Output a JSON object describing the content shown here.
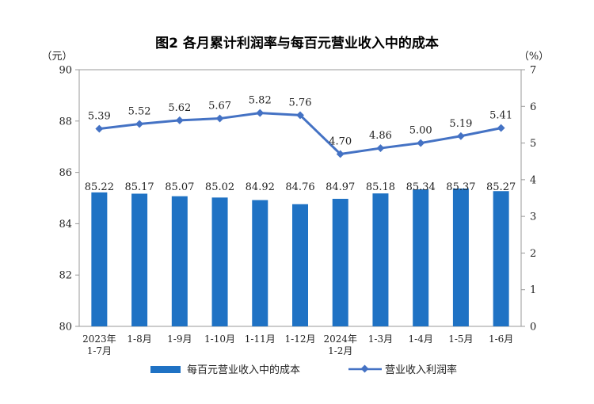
{
  "chart_data": {
    "type": "bar",
    "title": "图2  各月累计利润率与每百元营业收入中的成本",
    "y_left_unit": "（元）",
    "y_right_unit": "（%）",
    "y_left_ticks": [
      "80",
      "82",
      "84",
      "86",
      "88",
      "90"
    ],
    "y_right_ticks": [
      "0",
      "1",
      "2",
      "3",
      "4",
      "5",
      "6",
      "7"
    ],
    "ylim_left": [
      80,
      90
    ],
    "ylim_right": [
      0,
      7
    ],
    "categories": [
      [
        "2023年",
        "1-7月"
      ],
      [
        "1-8月"
      ],
      [
        "1-9月"
      ],
      [
        "1-10月"
      ],
      [
        "1-11月"
      ],
      [
        "1-12月"
      ],
      [
        "2024年",
        "1-2月"
      ],
      [
        "1-3月"
      ],
      [
        "1-4月"
      ],
      [
        "1-5月"
      ],
      [
        "1-6月"
      ]
    ],
    "series": [
      {
        "name": "每百元营业收入中的成本",
        "type": "bar",
        "axis": "left",
        "color": "#1f72c4",
        "values": [
          85.22,
          85.17,
          85.07,
          85.02,
          84.92,
          84.76,
          84.97,
          85.18,
          85.34,
          85.37,
          85.27
        ],
        "labels": [
          "85.22",
          "85.17",
          "85.07",
          "85.02",
          "84.92",
          "84.76",
          "84.97",
          "85.18",
          "85.34",
          "85.37",
          "85.27"
        ]
      },
      {
        "name": "营业收入利润率",
        "type": "line",
        "axis": "right",
        "color": "#4472c4",
        "values": [
          5.39,
          5.52,
          5.62,
          5.67,
          5.82,
          5.76,
          4.7,
          4.86,
          5.0,
          5.19,
          5.41
        ],
        "labels": [
          "5.39",
          "5.52",
          "5.62",
          "5.67",
          "5.82",
          "5.76",
          "4.70",
          "4.86",
          "5.00",
          "5.19",
          "5.41"
        ]
      }
    ],
    "legend_position": "bottom",
    "grid": false
  }
}
